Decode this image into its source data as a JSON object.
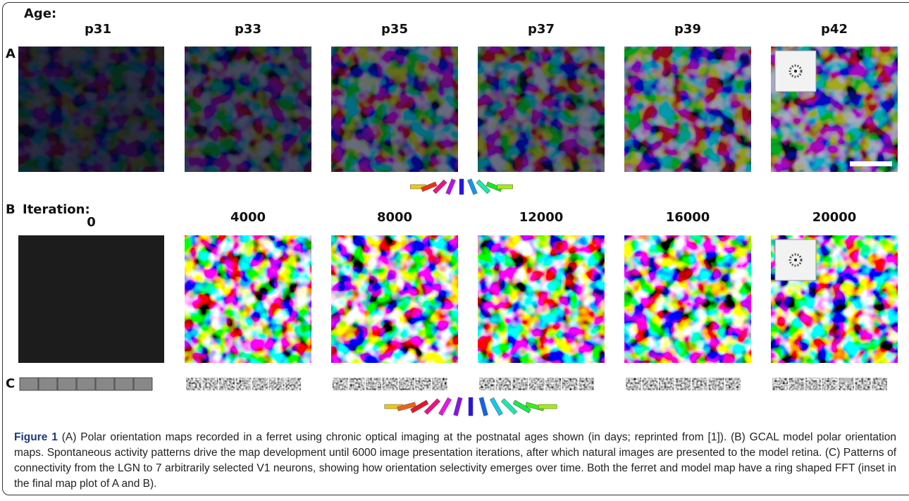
{
  "panel_labels": [
    "A",
    "B",
    "C"
  ],
  "row_a": {
    "heading": "Age:",
    "labels": [
      "p31",
      "p33",
      "p35",
      "p37",
      "p39",
      "p42"
    ]
  },
  "row_b": {
    "heading": "Iteration:",
    "labels": [
      "0",
      "4000",
      "8000",
      "12000",
      "16000",
      "20000"
    ]
  },
  "caption": {
    "label": "Figure 1",
    "text": "(A) Polar orientation maps recorded in a ferret using chronic optical imaging at the postnatal ages shown (in days; reprinted from [1]). (B) GCAL model polar orientation maps. Spontaneous activity patterns drive the map development until 6000 image presentation iterations, after which natural images are presented to the model retina. (C) Patterns of connectivity from the LGN to 7 arbitrarily selected V1 neurons, showing how orientation selectivity emerges over time. Both the ferret and model map have a ring shaped FFT (inset in the final map plot of A and B)."
  }
}
